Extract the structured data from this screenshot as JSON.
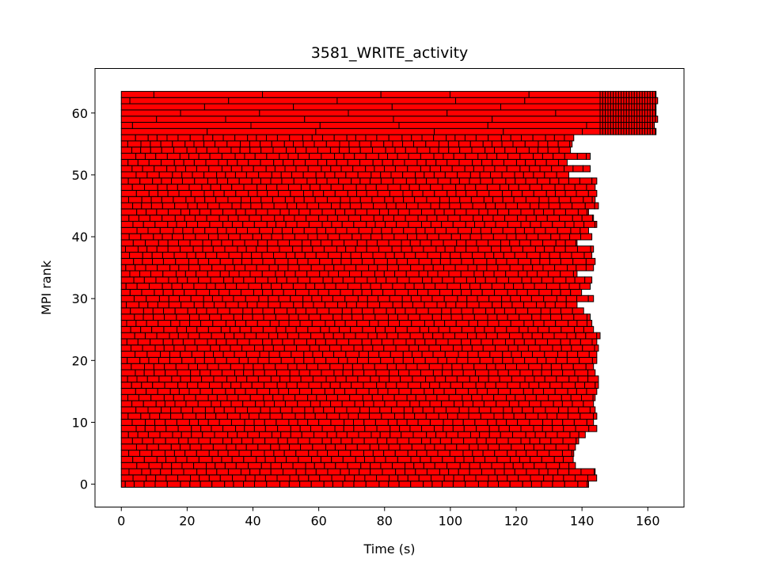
{
  "chart_data": {
    "type": "gantt",
    "title": "3581_WRITE_activity",
    "xlabel": "Time (s)",
    "ylabel": "MPI rank",
    "xlim": [
      -8,
      171
    ],
    "ylim": [
      -3.7,
      67.2
    ],
    "xticks": [
      0,
      20,
      40,
      60,
      80,
      100,
      120,
      140,
      160
    ],
    "yticks": [
      0,
      10,
      20,
      30,
      40,
      50,
      60
    ],
    "xtick_labels": [
      "0",
      "20",
      "40",
      "60",
      "80",
      "100",
      "120",
      "140",
      "160"
    ],
    "ytick_labels": [
      "0",
      "10",
      "20",
      "30",
      "40",
      "50",
      "60"
    ],
    "grid": false,
    "ranks": 64,
    "bar_color": "#ff0000",
    "edge_color": "#000000",
    "rank_end_times": [
      142,
      144.5,
      144,
      138,
      137.5,
      137.5,
      138,
      139,
      141,
      144.5,
      143.5,
      144.5,
      144,
      143.5,
      144,
      144.5,
      145,
      145,
      144,
      143.5,
      144.5,
      144.5,
      145,
      144.5,
      145.5,
      143.5,
      143,
      142.5,
      140.5,
      138.5,
      143.5,
      140,
      142.5,
      143,
      138.5,
      143.5,
      144,
      143,
      143.5,
      138.5,
      143,
      142,
      144.5,
      143.5,
      142,
      145,
      144,
      144.5,
      144,
      144.5,
      136,
      142.5,
      135.5,
      142.5,
      136.5,
      137,
      137.5,
      162.5,
      162,
      163,
      162.5,
      162.5,
      163,
      162.5
    ],
    "rank_groups": [
      {
        "ranks": [
          0,
          56
        ],
        "segment_length_s": 3.6,
        "activity": "WRITE"
      },
      {
        "ranks": [
          57,
          63
        ],
        "segment_length_s": 30,
        "tail_start_s": 145.5,
        "tail_segment_length_s": 0.8,
        "activity": "WRITE"
      }
    ]
  }
}
